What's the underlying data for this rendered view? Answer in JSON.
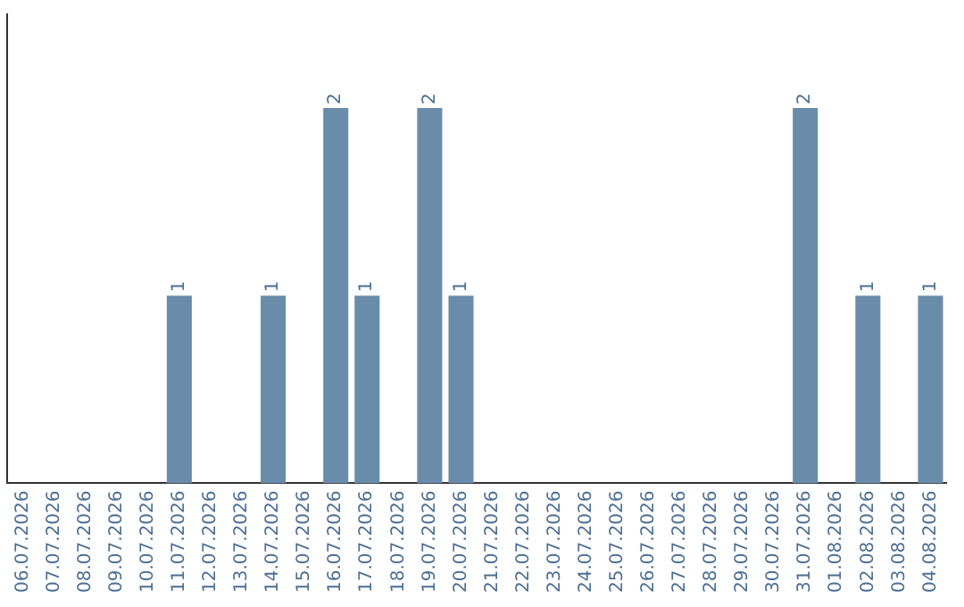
{
  "chart_data": {
    "type": "bar",
    "categories": [
      "06.07.2026",
      "07.07.2026",
      "08.07.2026",
      "09.07.2026",
      "10.07.2026",
      "11.07.2026",
      "12.07.2026",
      "13.07.2026",
      "14.07.2026",
      "15.07.2026",
      "16.07.2026",
      "17.07.2026",
      "18.07.2026",
      "19.07.2026",
      "20.07.2026",
      "21.07.2026",
      "22.07.2026",
      "23.07.2026",
      "24.07.2026",
      "25.07.2026",
      "26.07.2026",
      "27.07.2026",
      "28.07.2026",
      "29.07.2026",
      "30.07.2026",
      "31.07.2026",
      "01.08.2026",
      "02.08.2026",
      "03.08.2026",
      "04.08.2026"
    ],
    "values": [
      0,
      0,
      0,
      0,
      0,
      1,
      0,
      0,
      1,
      0,
      2,
      1,
      0,
      2,
      1,
      0,
      0,
      0,
      0,
      0,
      0,
      0,
      0,
      0,
      0,
      2,
      0,
      1,
      0,
      1
    ],
    "value_labels": [
      null,
      null,
      null,
      null,
      null,
      "1",
      null,
      null,
      "1",
      null,
      "2",
      "1",
      null,
      "2",
      "1",
      null,
      null,
      null,
      null,
      null,
      null,
      null,
      null,
      null,
      null,
      "2",
      null,
      "1",
      null,
      "1"
    ],
    "color": "#6a8cab",
    "tick_labels": "x",
    "grid": false,
    "legend": false
  }
}
